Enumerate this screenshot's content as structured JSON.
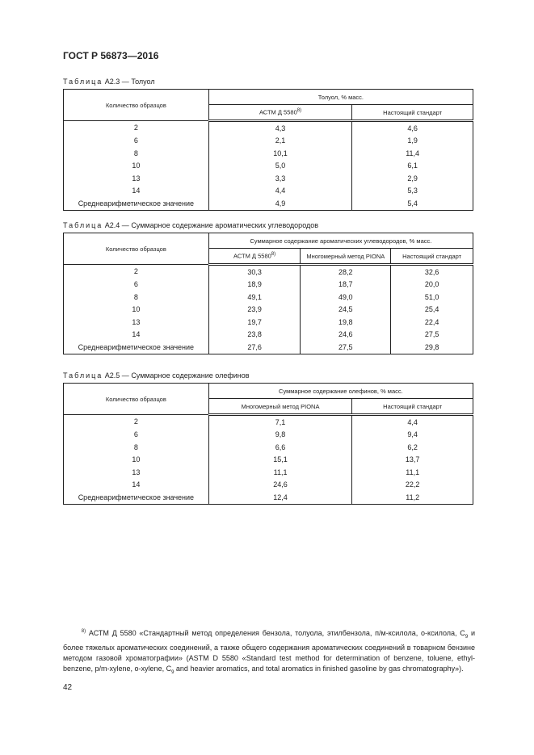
{
  "header": "ГОСТ Р 56873—2016",
  "tables": [
    {
      "label": "Таблица",
      "caption": " А2.3 — Толуол",
      "col0": "Количество образцов",
      "group": "Толуол, % масс.",
      "cols": [
        "АСТМ Д 5580",
        "Настоящий стандарт"
      ],
      "sup": "8)",
      "rows": [
        [
          "2",
          "4,3",
          "4,6"
        ],
        [
          "6",
          "2,1",
          "1,9"
        ],
        [
          "8",
          "10,1",
          "11,4"
        ],
        [
          "10",
          "5,0",
          "6,1"
        ],
        [
          "13",
          "3,3",
          "2,9"
        ],
        [
          "14",
          "4,4",
          "5,3"
        ],
        [
          "Среднеарифметическое значение",
          "4,9",
          "5,4"
        ]
      ]
    },
    {
      "label": "Таблица",
      "caption": " А2.4 — Суммарное содержание ароматических углеводородов",
      "col0": "Количество образцов",
      "group": "Суммарное содержание ароматических углеводородов, % масс.",
      "cols": [
        "АСТМ Д 5580",
        "Многомерный метод PIONA",
        "Настоящий стандарт"
      ],
      "sup": "8)",
      "rows": [
        [
          "2",
          "30,3",
          "28,2",
          "32,6"
        ],
        [
          "6",
          "18,9",
          "18,7",
          "20,0"
        ],
        [
          "8",
          "49,1",
          "49,0",
          "51,0"
        ],
        [
          "10",
          "23,9",
          "24,5",
          "25,4"
        ],
        [
          "13",
          "19,7",
          "19,8",
          "22,4"
        ],
        [
          "14",
          "23,8",
          "24,6",
          "27,5"
        ],
        [
          "Среднеарифметическое значение",
          "27,6",
          "27,5",
          "29,8"
        ]
      ]
    },
    {
      "label": "Таблица",
      "caption": " А2.5 — Суммарное содержание олефинов",
      "col0": "Количество образцов",
      "group": "Суммарное содержание олефинов, % масс.",
      "cols": [
        "Многомерный метод PIONA",
        "Настоящий стандарт"
      ],
      "sup": "",
      "rows": [
        [
          "2",
          "7,1",
          "4,4"
        ],
        [
          "6",
          "9,8",
          "9,4"
        ],
        [
          "8",
          "6,6",
          "6,2"
        ],
        [
          "10",
          "15,1",
          "13,7"
        ],
        [
          "13",
          "11,1",
          "11,1"
        ],
        [
          "14",
          "24,6",
          "22,2"
        ],
        [
          "Среднеарифметическое значение",
          "12,4",
          "11,2"
        ]
      ]
    }
  ],
  "footnote": {
    "mark": "8)",
    "text1": " АСТМ Д 5580 «Стандартный метод определения бензола, толуола, этилбензола, п/м-ксилола, о-ксилола, C",
    "sub1": "9",
    "text2": " и более тяжелых ароматических соединений, а также общего содержания ароматических соединений в товарном бензине методом газовой хроматографии» (ASTM D 5580 «Standard test method for determination of benzene, toluene, ethyl-benzene, p/m-xylene, o-xylene, C",
    "sub2": "9",
    "text3": " and heavier aromatics, and total aromatics in finished gasoline by gas chromatography»)."
  },
  "page_number": "42"
}
